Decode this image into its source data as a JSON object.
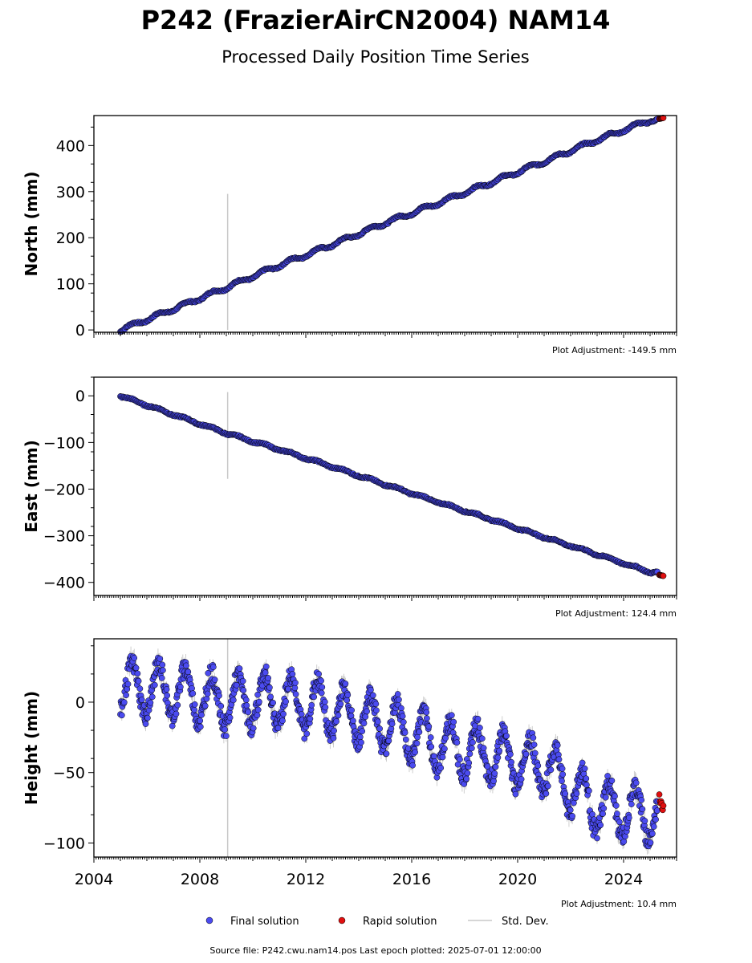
{
  "title": "P242 (FrazierAirCN2004) NAM14",
  "subtitle": "Processed Daily Position Time Series",
  "footer": "Source file: P242.cwu.nam14.pos  Last epoch plotted: 2025-07-01 12:00:00",
  "legend": {
    "final_label": "Final solution",
    "rapid_label": "Rapid solution",
    "std_label": "Std. Dev."
  },
  "colors": {
    "final": "#4b4bf0",
    "rapid": "#e01010",
    "std": "#c8c8c8",
    "outline": "#000000"
  },
  "chart_data": [
    {
      "type": "scatter",
      "component": "north",
      "ylabel": "North (mm)",
      "adjustment": "Plot Adjustment: -149.5 mm",
      "xlim": [
        2004.0,
        2026.0
      ],
      "ylim": [
        -5,
        465
      ],
      "yticks": [
        0,
        100,
        200,
        300,
        400
      ],
      "ytick_labels": [
        "0",
        "100",
        "200",
        "300",
        "400"
      ],
      "xticks": [
        2004,
        2008,
        2012,
        2016,
        2020,
        2024
      ],
      "xtick_labels": [],
      "series": [
        {
          "name": "Final solution",
          "x": [
            2005.0,
            2007.0,
            2009.0,
            2011.0,
            2013.0,
            2015.0,
            2017.0,
            2019.0,
            2021.0,
            2023.0,
            2025.0
          ],
          "y": [
            0,
            45,
            92,
            140,
            185,
            232,
            275,
            320,
            365,
            412,
            455
          ],
          "seasonal_amplitude": 4
        },
        {
          "name": "Rapid solution",
          "x": [
            2025.35,
            2025.5
          ],
          "y": [
            458,
            460
          ]
        }
      ],
      "outlier": {
        "x": 2009.05,
        "ymin": 0,
        "ymax": 295
      }
    },
    {
      "type": "scatter",
      "component": "east",
      "ylabel": "East (mm)",
      "adjustment": "Plot Adjustment: 124.4 mm",
      "xlim": [
        2004.0,
        2026.0
      ],
      "ylim": [
        -428,
        40
      ],
      "yticks": [
        0,
        -100,
        -200,
        -300,
        -400
      ],
      "ytick_labels": [
        "0",
        "−100",
        "−200",
        "−300",
        "−400"
      ],
      "xticks": [
        2004,
        2008,
        2012,
        2016,
        2020,
        2024
      ],
      "xtick_labels": [],
      "series": [
        {
          "name": "Final solution",
          "x": [
            2005.0,
            2007.0,
            2009.0,
            2011.0,
            2013.0,
            2015.0,
            2017.0,
            2019.0,
            2021.0,
            2023.0,
            2025.0
          ],
          "y": [
            0,
            -40,
            -80,
            -115,
            -152,
            -190,
            -228,
            -265,
            -303,
            -340,
            -378
          ],
          "seasonal_amplitude": 2
        },
        {
          "name": "Rapid solution",
          "x": [
            2025.35,
            2025.5
          ],
          "y": [
            -384,
            -386
          ]
        }
      ],
      "outlier": {
        "x": 2009.05,
        "ymin": -178,
        "ymax": 8
      }
    },
    {
      "type": "scatter",
      "component": "height",
      "ylabel": "Height (mm)",
      "adjustment": "Plot Adjustment: 10.4 mm",
      "xlim": [
        2004.0,
        2026.0
      ],
      "ylim": [
        -110,
        45
      ],
      "yticks": [
        0,
        -50,
        -100
      ],
      "ytick_labels": [
        "0",
        "−50",
        "−100"
      ],
      "xticks": [
        2004,
        2008,
        2012,
        2016,
        2020,
        2024
      ],
      "xtick_labels": [
        "2004",
        "2008",
        "2012",
        "2016",
        "2020",
        "2024"
      ],
      "series": [
        {
          "name": "Final solution",
          "x": [
            2005.0,
            2007.0,
            2009.0,
            2011.0,
            2013.0,
            2015.0,
            2017.0,
            2019.0,
            2021.0,
            2023.0,
            2025.0
          ],
          "y": [
            10,
            8,
            0,
            2,
            -5,
            -15,
            -30,
            -38,
            -45,
            -75,
            -80
          ],
          "seasonal_amplitude": 18
        },
        {
          "name": "Rapid solution",
          "x": [
            2025.35,
            2025.5
          ],
          "y": [
            -68,
            -75
          ]
        }
      ],
      "outlier": {
        "x": 2009.05,
        "ymin": -110,
        "ymax": 45
      }
    }
  ]
}
